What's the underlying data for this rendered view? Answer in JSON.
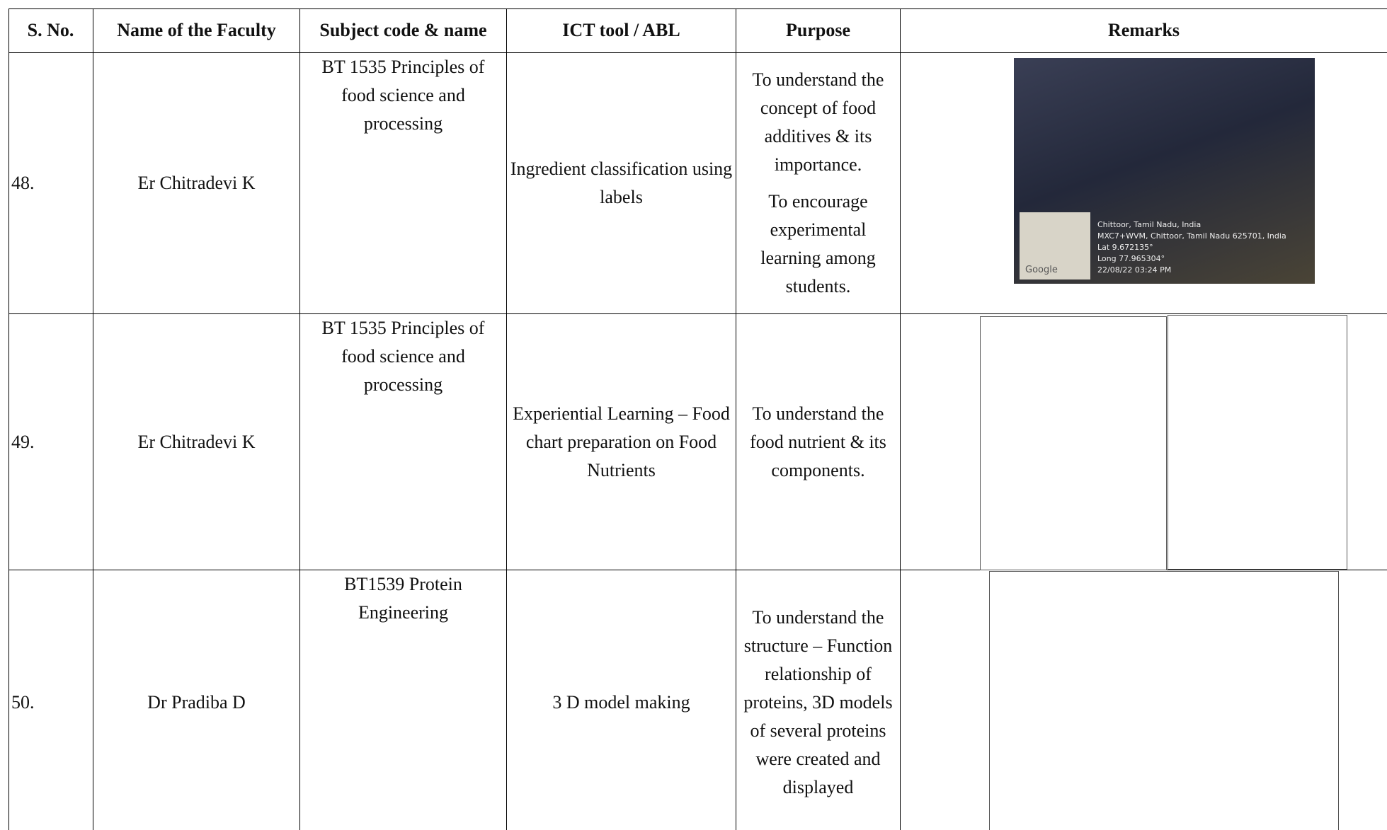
{
  "table": {
    "header": [
      "S. No.",
      "Name of the Faculty",
      "Subject code &  name",
      "ICT tool / ABL",
      "Purpose",
      "Remarks"
    ],
    "rows": [
      {
        "sno": "48.",
        "faculty": "Er Chitradevi K",
        "subject": "BT 1535 Principles of food science and processing",
        "tool": "Ingredient classification using labels",
        "purpose": [
          "To understand the concept of food additives & its importance.",
          "To encourage experimental learning among students."
        ],
        "photo_overlay": {
          "place": "Chittoor, Tamil Nadu, India",
          "address": "MXC7+WVM, Chittoor, Tamil Nadu 625701, India",
          "lat": "Lat 9.672135°",
          "long": "Long 77.965304°",
          "time": "22/08/22 03:24 PM",
          "map": "Google"
        }
      },
      {
        "sno": "49.",
        "faculty": "Er Chitradevi K",
        "subject": "BT 1535 Principles of food science and processing",
        "tool": "Experiential Learning – Food chart preparation on Food Nutrients",
        "purpose": [
          "To understand the food nutrient & its components."
        ]
      },
      {
        "sno": "50.",
        "faculty": "Dr Pradiba D",
        "subject": "BT1539 Protein Engineering",
        "tool": "3 D model making",
        "purpose": [
          "To understand the structure – Function relationship of proteins, 3D models of several proteins were created and displayed"
        ]
      }
    ]
  }
}
